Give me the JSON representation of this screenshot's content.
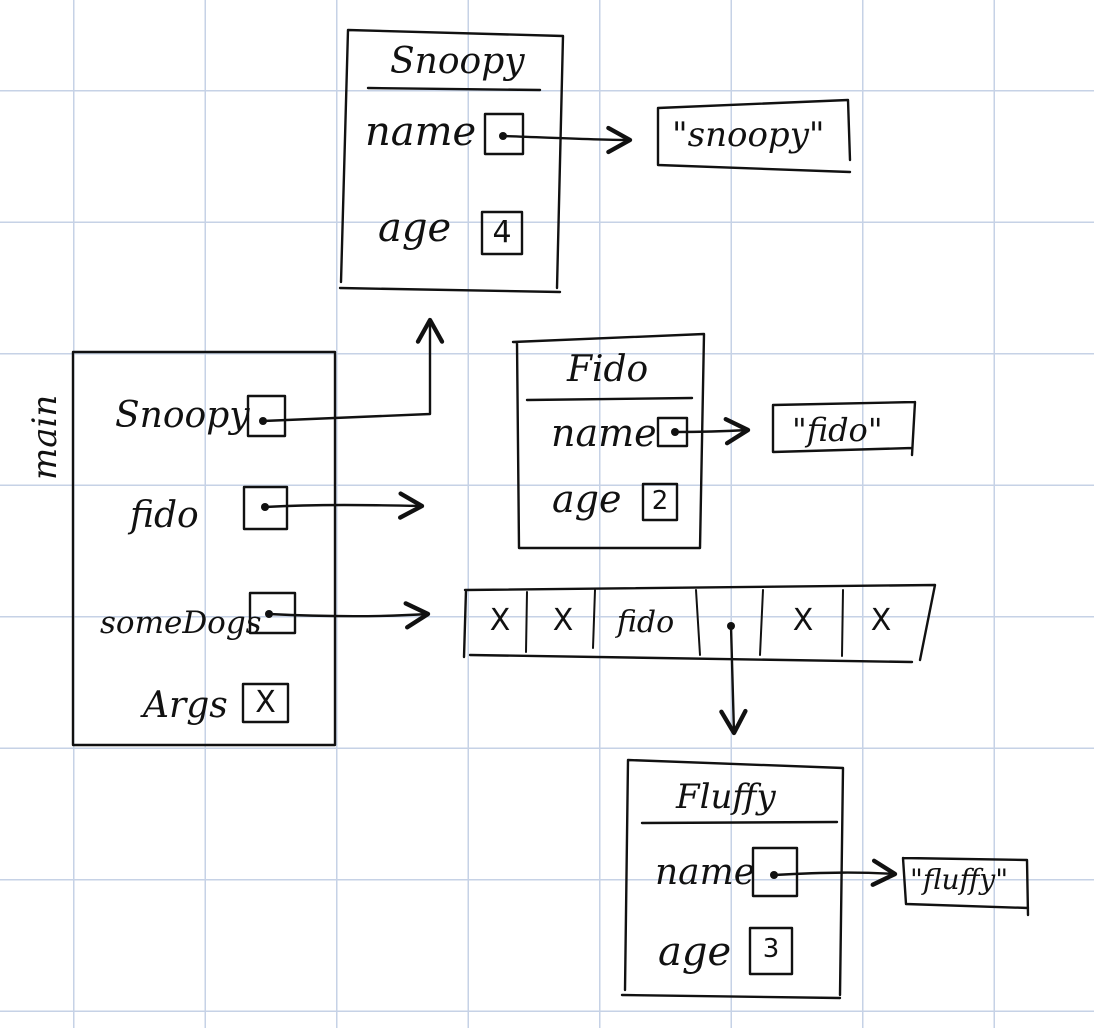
{
  "stack_frame": {
    "label": "main",
    "variables": [
      {
        "name": "Snoopy",
        "kind": "reference"
      },
      {
        "name": "fido",
        "kind": "reference"
      },
      {
        "name": "someDogs",
        "kind": "reference"
      },
      {
        "name": "Args",
        "kind": "null",
        "value": "X"
      }
    ]
  },
  "objects": {
    "snoopy": {
      "title": "Snoopy",
      "fields": [
        {
          "name": "name",
          "kind": "reference"
        },
        {
          "name": "age",
          "value": "4"
        }
      ],
      "name_string": "\"snoopy\""
    },
    "fido": {
      "title": "Fido",
      "fields": [
        {
          "name": "name",
          "kind": "reference"
        },
        {
          "name": "age",
          "value": "2"
        }
      ],
      "name_string": "\"fido\""
    },
    "fluffy": {
      "title": "Fluffy",
      "fields": [
        {
          "name": "name",
          "kind": "reference"
        },
        {
          "name": "age",
          "value": "3"
        }
      ],
      "name_string": "\"fluffy\""
    }
  },
  "array": {
    "cells": [
      "X",
      "X",
      "fido",
      "•",
      "X",
      "X"
    ]
  }
}
